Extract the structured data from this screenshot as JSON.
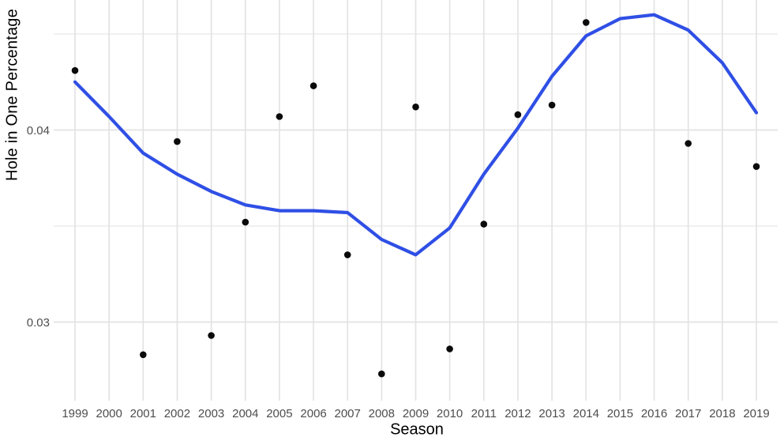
{
  "colors": {
    "background": "#FFFFFF",
    "grid_major": "#E3E3E3",
    "grid_minor": "#ECECEC",
    "smooth_line": "#2F4FE5",
    "point": "#0A0A0A",
    "tick_label": "#4D4D4D",
    "axis_title": "#000000"
  },
  "chart_data": {
    "type": "scatter",
    "title": "",
    "xlabel": "Season",
    "ylabel": "Hole in One Percentage",
    "grid": true,
    "legend": "none",
    "xlim": [
      1998.4,
      2019.6
    ],
    "ylim": [
      0.026,
      0.0468
    ],
    "x_ticks": [
      "1999",
      "2000",
      "2001",
      "2002",
      "2003",
      "2004",
      "2005",
      "2006",
      "2007",
      "2008",
      "2009",
      "2010",
      "2011",
      "2012",
      "2013",
      "2014",
      "2015",
      "2016",
      "2017",
      "2018",
      "2019"
    ],
    "y_ticks": [
      {
        "value": 0.03,
        "label": "0.03"
      },
      {
        "value": 0.04,
        "label": "0.04"
      }
    ],
    "y_minor_gridlines": [
      0.035,
      0.045
    ],
    "series": [
      {
        "name": "observed-hole-in-one-percentage",
        "type": "scatter",
        "points": [
          [
            1999,
            0.0431
          ],
          [
            2001,
            0.0283
          ],
          [
            2002,
            0.0394
          ],
          [
            2003,
            0.0293
          ],
          [
            2004,
            0.0352
          ],
          [
            2005,
            0.0407
          ],
          [
            2006,
            0.0423
          ],
          [
            2007,
            0.0335
          ],
          [
            2008,
            0.0273
          ],
          [
            2009,
            0.0412
          ],
          [
            2010,
            0.0286
          ],
          [
            2011,
            0.0351
          ],
          [
            2012,
            0.0408
          ],
          [
            2013,
            0.0413
          ],
          [
            2014,
            0.0456
          ],
          [
            2017,
            0.0393
          ],
          [
            2019,
            0.0381
          ]
        ]
      },
      {
        "name": "smoothed-trend",
        "type": "line",
        "points": [
          [
            1999,
            0.0425
          ],
          [
            2000,
            0.0407
          ],
          [
            2001,
            0.0388
          ],
          [
            2002,
            0.0377
          ],
          [
            2003,
            0.0368
          ],
          [
            2004,
            0.0361
          ],
          [
            2005,
            0.0358
          ],
          [
            2006,
            0.0358
          ],
          [
            2007,
            0.0357
          ],
          [
            2008,
            0.0343
          ],
          [
            2009,
            0.0335
          ],
          [
            2010,
            0.0349
          ],
          [
            2011,
            0.0377
          ],
          [
            2012,
            0.0401
          ],
          [
            2013,
            0.0428
          ],
          [
            2014,
            0.0449
          ],
          [
            2015,
            0.0458
          ],
          [
            2016,
            0.046
          ],
          [
            2017,
            0.0452
          ],
          [
            2018,
            0.0435
          ],
          [
            2019,
            0.0409
          ]
        ]
      }
    ]
  }
}
